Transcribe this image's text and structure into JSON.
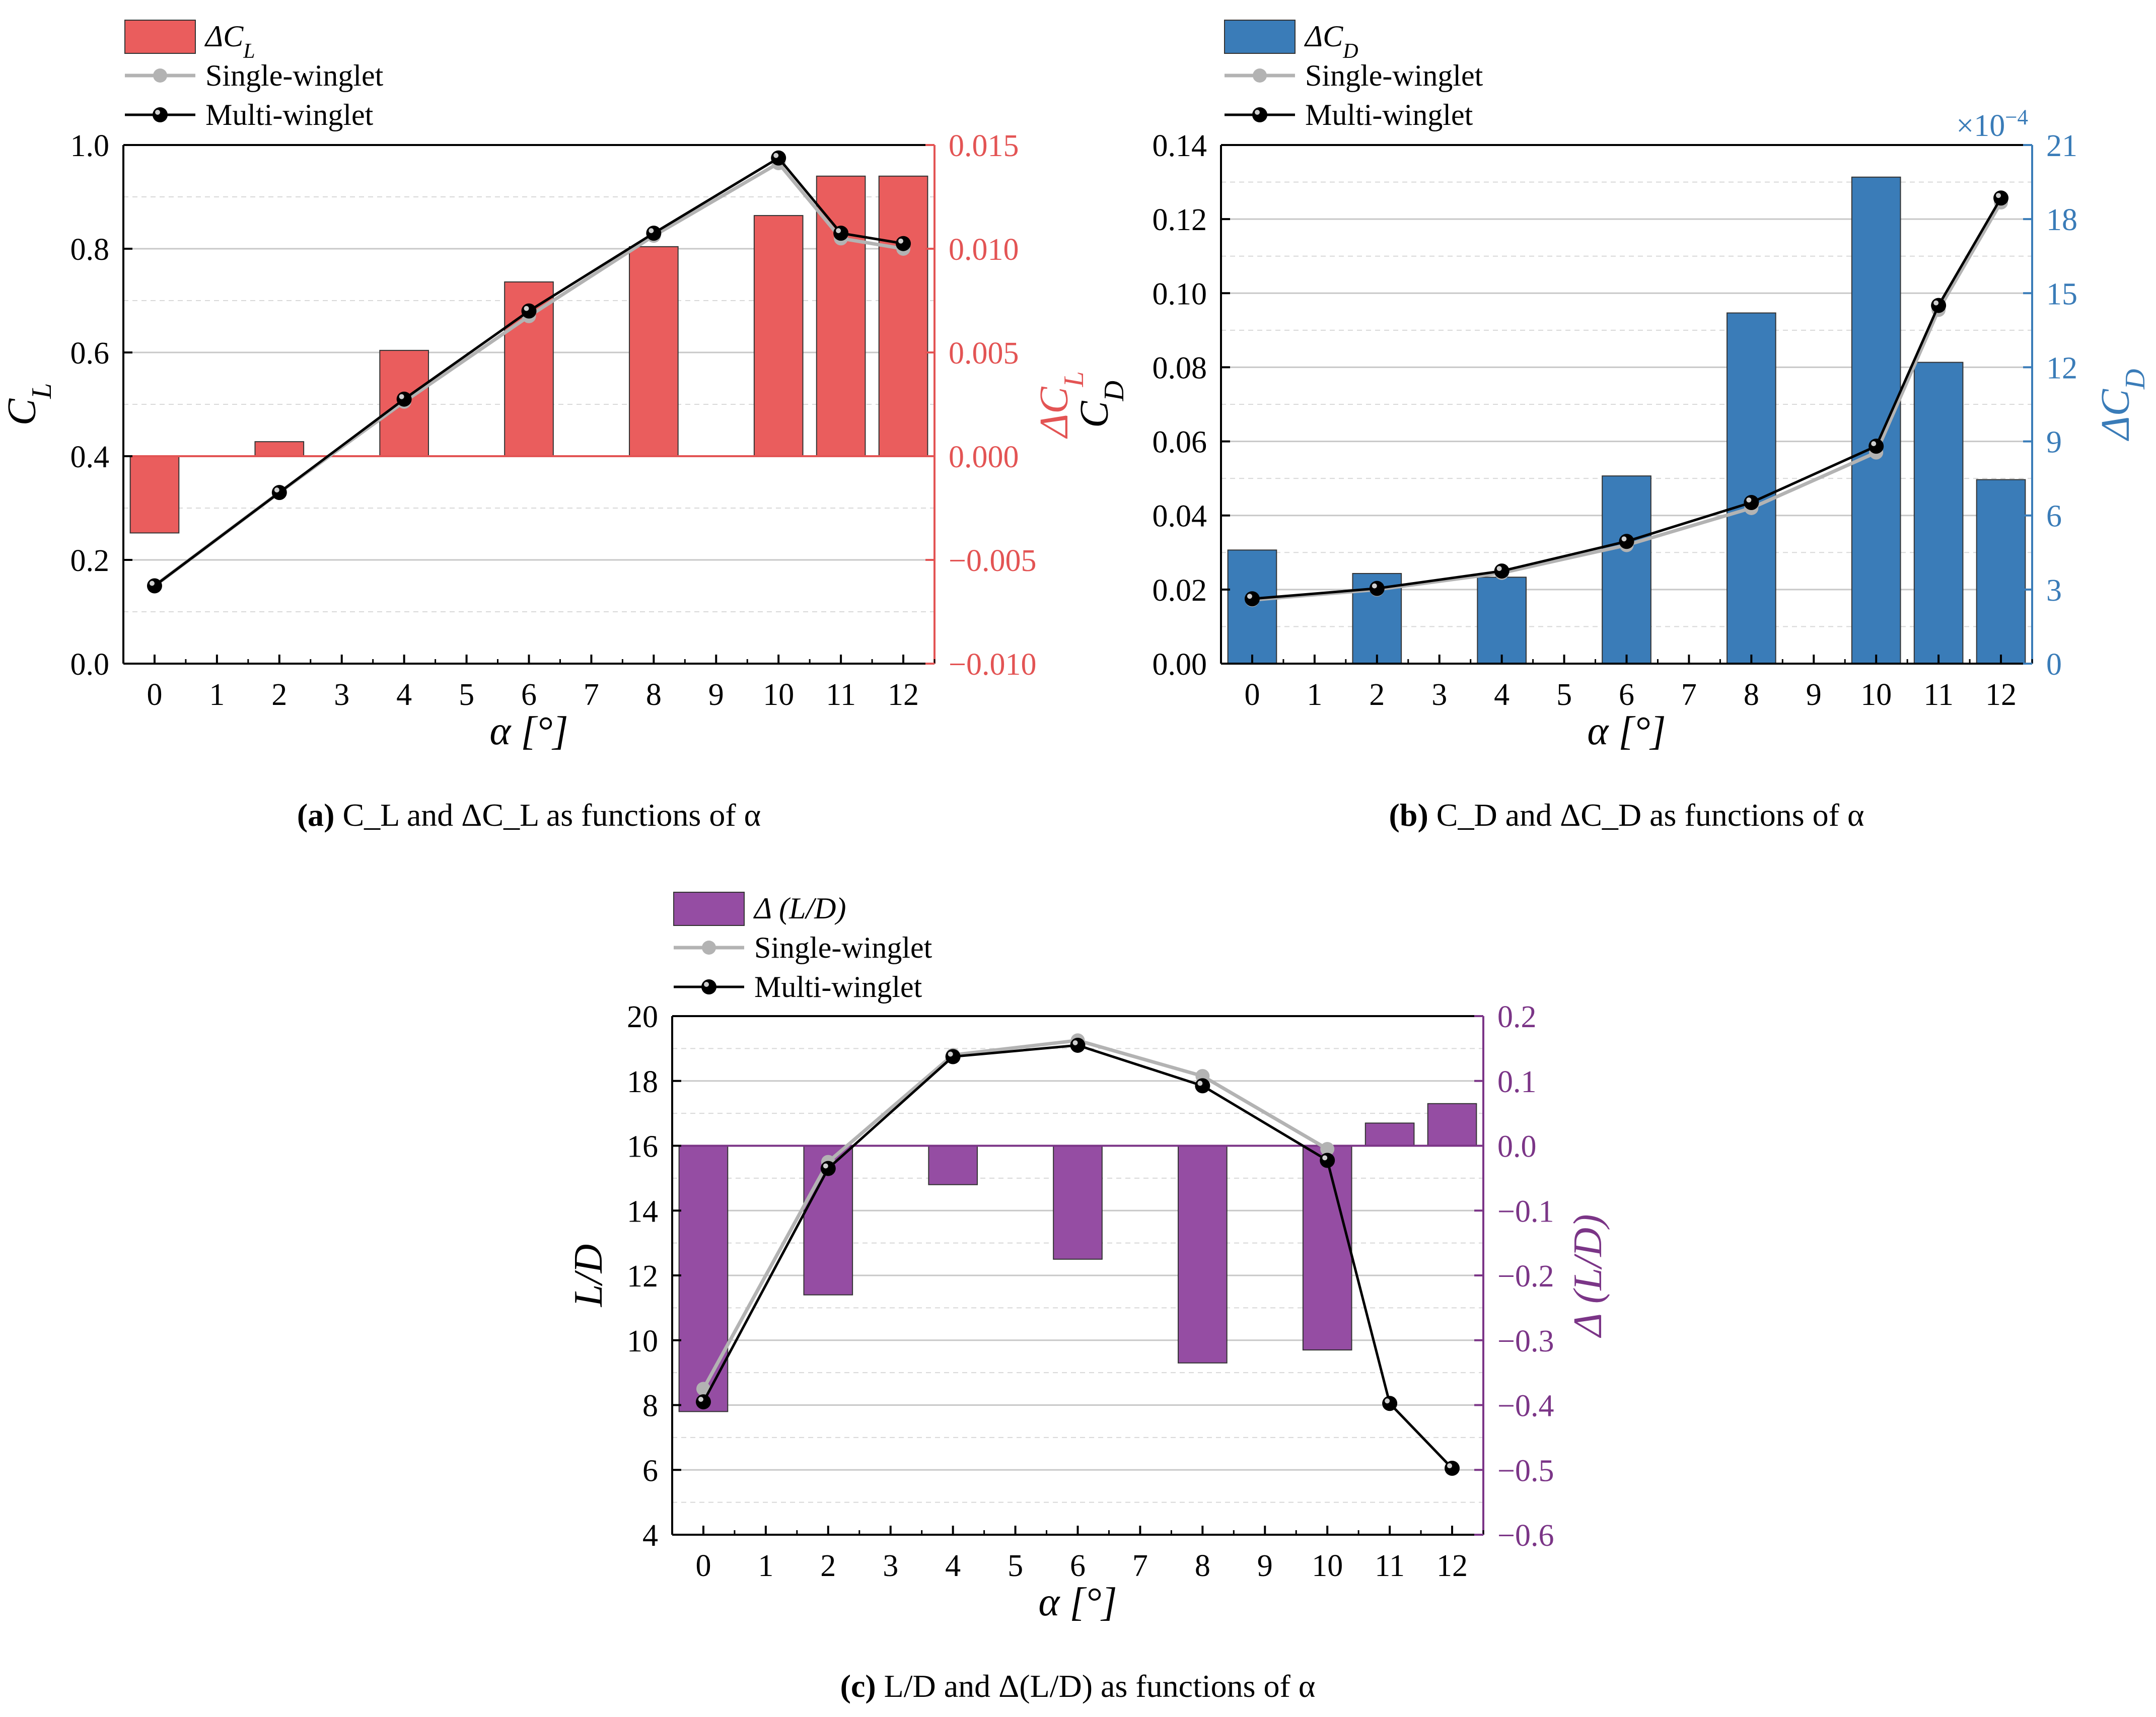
{
  "colors": {
    "panel_a": "#ea5d5d",
    "panel_a_axis": "#e35454",
    "panel_b": "#3a7cb8",
    "panel_b_axis": "#3a7cb8",
    "panel_c": "#954da3",
    "panel_c_axis": "#7b3587",
    "single": "#b3b3b3",
    "multi": "#000000",
    "grid": "#c8c8c8"
  },
  "chart_data": [
    {
      "id": "a",
      "type": "bar+line",
      "title": "",
      "xlabel": "α [°]",
      "ylabel": "C_L",
      "y2label": "ΔC_L",
      "x_ticks": [
        0,
        1,
        2,
        3,
        4,
        5,
        6,
        7,
        8,
        9,
        10,
        11,
        12
      ],
      "x_tick_labels": [
        "0",
        "1",
        "2",
        "3",
        "4",
        "5",
        "6",
        "7",
        "8",
        "9",
        "10",
        "11",
        "12"
      ],
      "ylim": [
        0,
        1.0
      ],
      "y_ticks": [
        0.0,
        0.2,
        0.4,
        0.6,
        0.8,
        1.0
      ],
      "y_tick_labels": [
        "0.0",
        "0.2",
        "0.4",
        "0.6",
        "0.8",
        "1.0"
      ],
      "y2lim": [
        -0.01,
        0.015
      ],
      "y2_ticks": [
        -0.01,
        -0.005,
        0.0,
        0.005,
        0.01,
        0.015
      ],
      "y2_tick_labels": [
        "−0.010",
        "−0.005",
        "0.000",
        "0.005",
        "0.010",
        "0.015"
      ],
      "y2_multiplier_label": "",
      "bar_baseline": 0.0,
      "bars": {
        "name": "ΔC_L",
        "x": [
          0,
          2,
          4,
          6,
          8,
          10,
          11,
          12
        ],
        "values": [
          -0.0037,
          0.0007,
          0.0051,
          0.0084,
          0.0101,
          0.0116,
          0.0135,
          0.0135
        ]
      },
      "series": [
        {
          "name": "Single-winglet",
          "x": [
            0,
            2,
            4,
            6,
            8,
            10,
            11,
            12
          ],
          "values": [
            0.15,
            0.33,
            0.505,
            0.67,
            0.825,
            0.965,
            0.82,
            0.8
          ]
        },
        {
          "name": "Multi-winglet",
          "x": [
            0,
            2,
            4,
            6,
            8,
            10,
            11,
            12
          ],
          "values": [
            0.15,
            0.33,
            0.51,
            0.68,
            0.83,
            0.975,
            0.83,
            0.81
          ]
        }
      ],
      "legend": [
        "ΔC_L",
        "Single-winglet",
        "Multi-winglet"
      ],
      "legend_position": "top-left",
      "caption": {
        "tag": "(a)",
        "rest": " C_L and ΔC_L as functions of α"
      }
    },
    {
      "id": "b",
      "type": "bar+line",
      "title": "",
      "xlabel": "α [°]",
      "ylabel": "C_D",
      "y2label": "ΔC_D",
      "x_ticks": [
        0,
        1,
        2,
        3,
        4,
        5,
        6,
        7,
        8,
        9,
        10,
        11,
        12
      ],
      "x_tick_labels": [
        "0",
        "1",
        "2",
        "3",
        "4",
        "5",
        "6",
        "7",
        "8",
        "9",
        "10",
        "11",
        "12"
      ],
      "ylim": [
        0,
        0.14
      ],
      "y_ticks": [
        0.0,
        0.02,
        0.04,
        0.06,
        0.08,
        0.1,
        0.12,
        0.14
      ],
      "y_tick_labels": [
        "0.00",
        "0.02",
        "0.04",
        "0.06",
        "0.08",
        "0.10",
        "0.12",
        "0.14"
      ],
      "y2lim": [
        0,
        21
      ],
      "y2_ticks": [
        0,
        3,
        6,
        9,
        12,
        15,
        18,
        21
      ],
      "y2_tick_labels": [
        "0",
        "3",
        "6",
        "9",
        "12",
        "15",
        "18",
        "21"
      ],
      "y2_multiplier_label": "×10−4",
      "bar_baseline": 0,
      "bars": {
        "name": "ΔC_D",
        "x": [
          0,
          2,
          4,
          6,
          8,
          10,
          11,
          12
        ],
        "values": [
          4.6,
          3.65,
          3.5,
          7.6,
          14.2,
          19.7,
          12.2,
          7.45
        ]
      },
      "series": [
        {
          "name": "Single-winglet",
          "x": [
            0,
            2,
            4,
            6,
            8,
            10,
            11,
            12
          ],
          "values": [
            0.0172,
            0.02,
            0.0245,
            0.032,
            0.042,
            0.057,
            0.0955,
            0.1245
          ]
        },
        {
          "name": "Multi-winglet",
          "x": [
            0,
            2,
            4,
            6,
            8,
            10,
            11,
            12
          ],
          "values": [
            0.0175,
            0.0203,
            0.025,
            0.033,
            0.0435,
            0.0587,
            0.0967,
            0.1257
          ]
        }
      ],
      "legend": [
        "ΔC_D",
        "Single-winglet",
        "Multi-winglet"
      ],
      "legend_position": "top-left",
      "caption": {
        "tag": "(b)",
        "rest": " C_D and ΔC_D as functions of α"
      }
    },
    {
      "id": "c",
      "type": "bar+line",
      "title": "",
      "xlabel": "α [°]",
      "ylabel": "L/D",
      "y2label": "Δ (L/D)",
      "x_ticks": [
        0,
        1,
        2,
        3,
        4,
        5,
        6,
        7,
        8,
        9,
        10,
        11,
        12
      ],
      "x_tick_labels": [
        "0",
        "1",
        "2",
        "3",
        "4",
        "5",
        "6",
        "7",
        "8",
        "9",
        "10",
        "11",
        "12"
      ],
      "ylim": [
        4,
        20
      ],
      "y_ticks": [
        4,
        6,
        8,
        10,
        12,
        14,
        16,
        18,
        20
      ],
      "y_tick_labels": [
        "4",
        "6",
        "8",
        "10",
        "12",
        "14",
        "16",
        "18",
        "20"
      ],
      "y2lim": [
        -0.6,
        0.2
      ],
      "y2_ticks": [
        -0.6,
        -0.5,
        -0.4,
        -0.3,
        -0.2,
        -0.1,
        0.0,
        0.1,
        0.2
      ],
      "y2_tick_labels": [
        "−0.6",
        "−0.5",
        "−0.4",
        "−0.3",
        "−0.2",
        "−0.1",
        "0.0",
        "0.1",
        "0.2"
      ],
      "y2_multiplier_label": "",
      "bar_baseline": 0.0,
      "bars": {
        "name": "Δ (L/D)",
        "x": [
          0,
          2,
          4,
          6,
          8,
          10,
          11,
          12
        ],
        "values": [
          -0.41,
          -0.23,
          -0.06,
          -0.175,
          -0.335,
          -0.315,
          0.035,
          0.065
        ]
      },
      "series": [
        {
          "name": "Single-winglet",
          "x": [
            0,
            2,
            4,
            6,
            8,
            10
          ],
          "values": [
            8.5,
            15.5,
            18.8,
            19.25,
            18.15,
            15.9
          ]
        },
        {
          "name": "Multi-winglet",
          "x": [
            0,
            2,
            4,
            6,
            8,
            10,
            11,
            12
          ],
          "values": [
            8.1,
            15.3,
            18.75,
            19.1,
            17.85,
            15.55,
            8.05,
            6.05
          ]
        }
      ],
      "legend": [
        "Δ (L/D)",
        "Single-winglet",
        "Multi-winglet"
      ],
      "legend_position": "top-left",
      "caption": {
        "tag": "(c)",
        "rest": " L/D and Δ(L/D) as functions of α"
      }
    }
  ]
}
